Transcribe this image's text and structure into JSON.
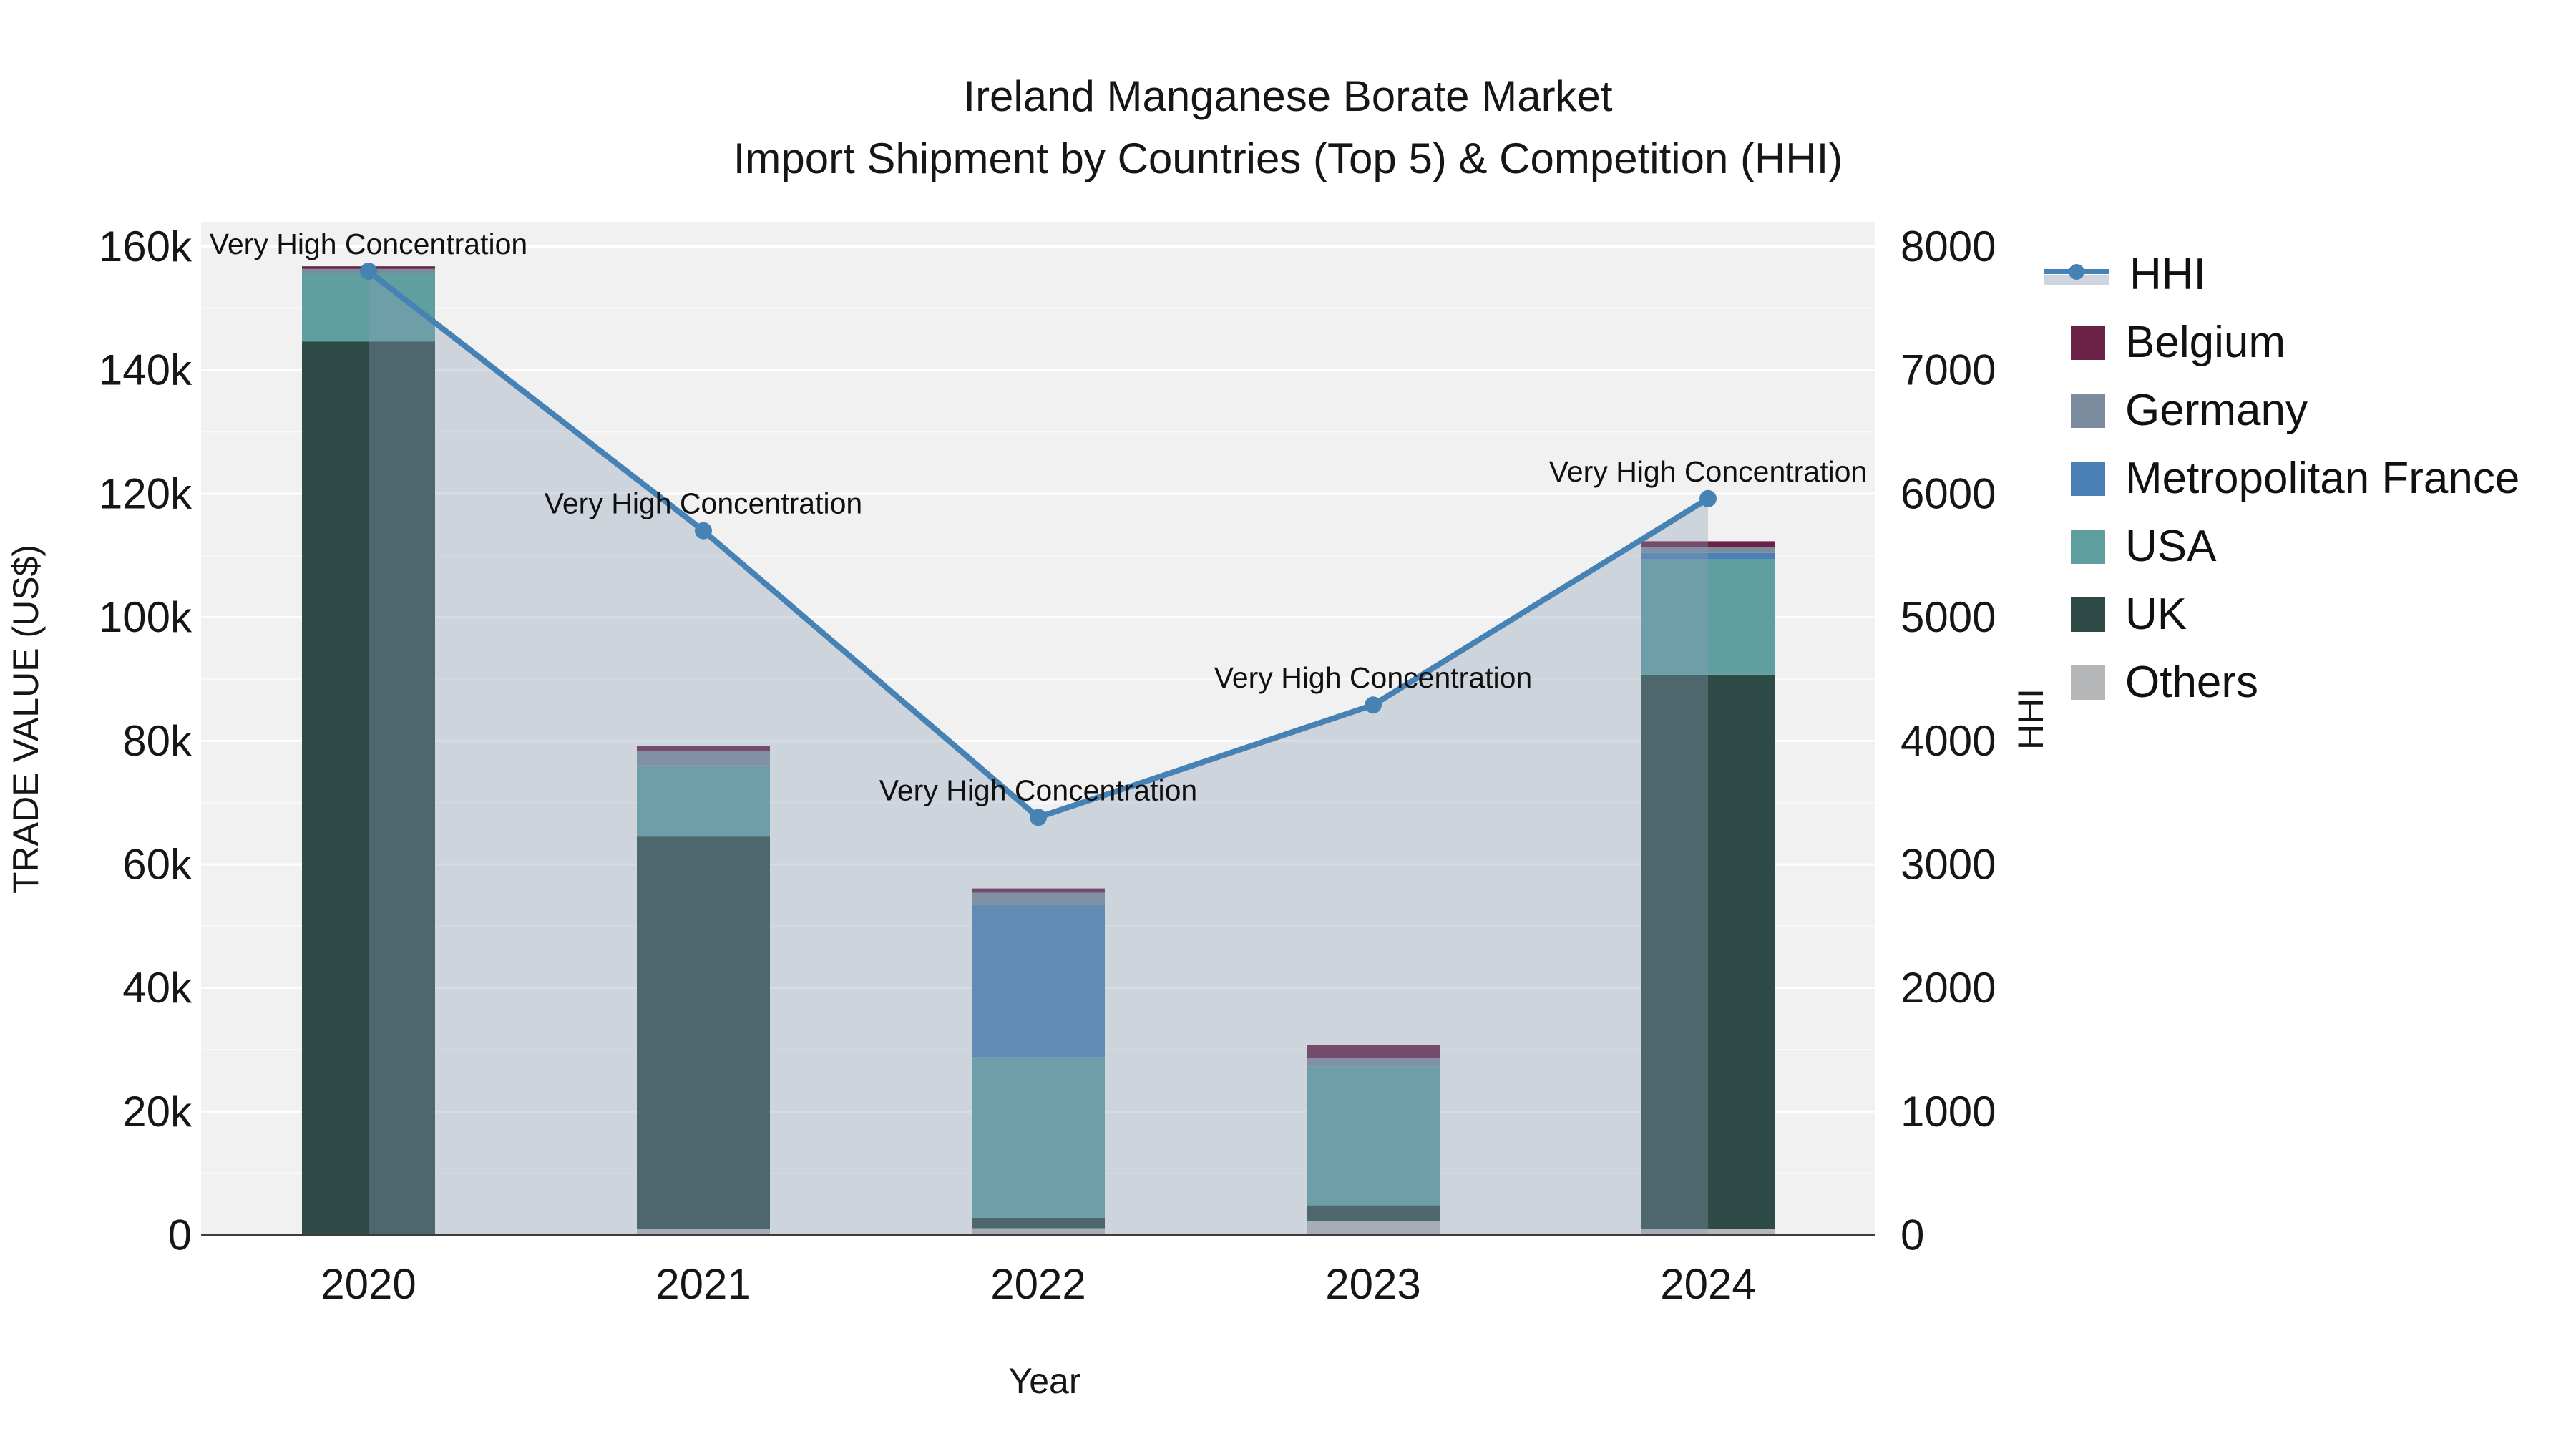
{
  "chart_data": {
    "type": "bar+line",
    "title": "Ireland Manganese Borate Market",
    "subtitle": "Import Shipment by Countries (Top 5) & Competition (HHI)",
    "xlabel": "Year",
    "ylabel_left": "TRADE VALUE (US$)",
    "ylabel_right": "HHI",
    "categories": [
      "2020",
      "2021",
      "2022",
      "2023",
      "2024"
    ],
    "stack_order": [
      "Others",
      "UK",
      "USA",
      "Metropolitan France",
      "Germany",
      "Belgium"
    ],
    "series": [
      {
        "name": "Belgium",
        "color": "#6b2145",
        "values": [
          400,
          800,
          700,
          2200,
          900
        ]
      },
      {
        "name": "Germany",
        "color": "#7b8b9d",
        "values": [
          700,
          2300,
          2000,
          1300,
          1000
        ]
      },
      {
        "name": "Metropolitan France",
        "color": "#4a80b5",
        "values": [
          0,
          0,
          24600,
          0,
          1000
        ]
      },
      {
        "name": "USA",
        "color": "#5f9fa0",
        "values": [
          11100,
          11500,
          26000,
          22500,
          18700
        ]
      },
      {
        "name": "UK",
        "color": "#2d4a46",
        "values": [
          144600,
          63500,
          1700,
          2600,
          89700
        ]
      },
      {
        "name": "Others",
        "color": "#b4b6b7",
        "values": [
          0,
          1000,
          1100,
          2200,
          1000
        ]
      }
    ],
    "hhi": {
      "name": "HHI",
      "color": "#4682b4",
      "area_color": "rgba(140,158,180,0.35)",
      "values": [
        7800,
        5700,
        3380,
        4290,
        5960
      ]
    },
    "annotations": [
      "Very High Concentration",
      "Very High Concentration",
      "Very High Concentration",
      "Very High Concentration",
      "Very High Concentration"
    ],
    "y_left": {
      "tick_values": [
        0,
        20000,
        40000,
        60000,
        80000,
        100000,
        120000,
        140000,
        160000
      ],
      "tick_labels": [
        "0",
        "20k",
        "40k",
        "60k",
        "80k",
        "100k",
        "120k",
        "140k",
        "160k"
      ],
      "max": 164000
    },
    "y_right": {
      "tick_values": [
        0,
        1000,
        2000,
        3000,
        4000,
        5000,
        6000,
        7000,
        8000
      ],
      "tick_labels": [
        "0",
        "1000",
        "2000",
        "3000",
        "4000",
        "5000",
        "6000",
        "7000",
        "8000"
      ],
      "max": 8200
    },
    "legend": [
      "HHI",
      "Belgium",
      "Germany",
      "Metropolitan France",
      "USA",
      "UK",
      "Others"
    ],
    "plot_bg": "#f1f1f2",
    "grid_major": "rgba(255,255,255,0.95)",
    "grid_minor": "rgba(255,255,255,0.55)",
    "axis_line_color": "#3c3c3c",
    "text_color": "#161616"
  }
}
